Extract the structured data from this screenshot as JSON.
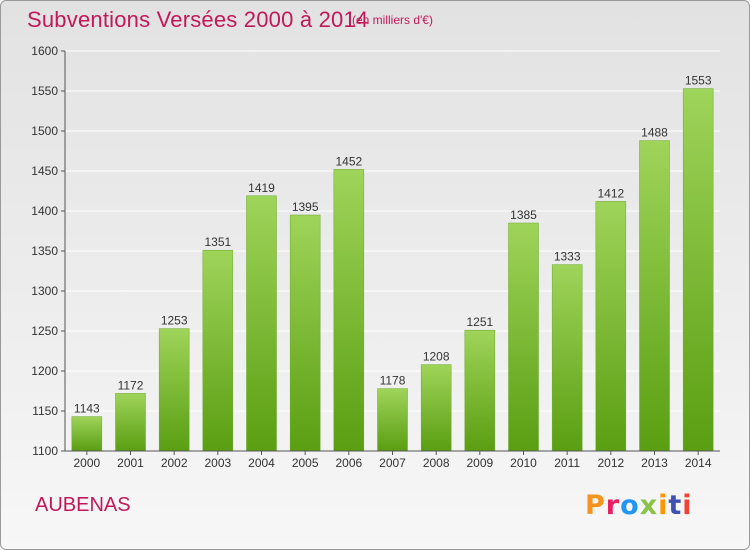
{
  "header": {
    "title": "Subventions Versées 2000 à 2014",
    "subtitle": "(en milliers d'€)"
  },
  "footer": {
    "place": "AUBENAS",
    "brand": "Proxiti"
  },
  "colors": {
    "title": "#c2185b",
    "bar_top": "#9fd45a",
    "bar_bottom": "#5a9e12",
    "axis": "#555555",
    "gridline": "#ffffff"
  },
  "chart_data": {
    "type": "bar",
    "title": "Subventions Versées 2000 à 2014",
    "subtitle": "(en milliers d'€)",
    "xlabel": "",
    "ylabel": "",
    "categories": [
      "2000",
      "2001",
      "2002",
      "2003",
      "2004",
      "2005",
      "2006",
      "2007",
      "2008",
      "2009",
      "2010",
      "2011",
      "2012",
      "2013",
      "2014"
    ],
    "values": [
      1143,
      1172,
      1253,
      1351,
      1419,
      1395,
      1452,
      1178,
      1208,
      1251,
      1385,
      1333,
      1412,
      1488,
      1553
    ],
    "ylim": [
      1100,
      1600
    ],
    "yticks": [
      1100,
      1150,
      1200,
      1250,
      1300,
      1350,
      1400,
      1450,
      1500,
      1550,
      1600
    ],
    "grid": true,
    "legend": "none",
    "data_labels": true
  }
}
